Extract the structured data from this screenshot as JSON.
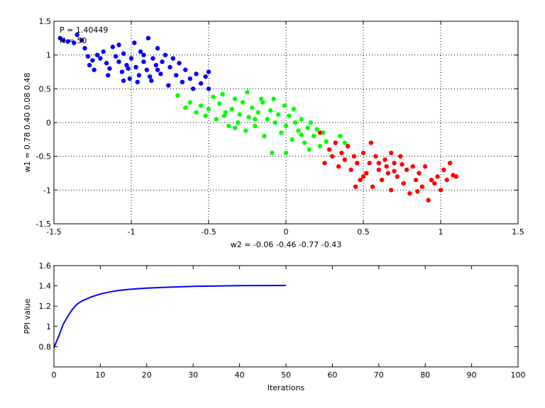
{
  "chart_data": [
    {
      "type": "scatter",
      "annotations": [
        "P = 1.40449",
        "N = 50"
      ],
      "xlabel": "w2 = -0.06  -0.46  -0.77  -0.43",
      "ylabel": "w1 = 0.78  0.40  0.08  0.48",
      "xlim": [
        -1.5,
        1.5
      ],
      "ylim": [
        -1.5,
        1.5
      ],
      "xticks": [
        -1.5,
        -1,
        -0.5,
        0,
        0.5,
        1,
        1.5
      ],
      "yticks": [
        -1.5,
        -1,
        -0.5,
        0,
        0.5,
        1,
        1.5
      ],
      "xtick_labels": [
        "-1.5",
        "-1",
        "-0.5",
        "0",
        "0.5",
        "1",
        "1.5"
      ],
      "ytick_labels": [
        "-1.5",
        "-1",
        "-0.5",
        "0",
        "0.5",
        "1",
        "1.5"
      ],
      "grid": true,
      "series": [
        {
          "color": "#0000ff",
          "points": [
            [
              -1.46,
              1.25
            ],
            [
              -1.44,
              1.22
            ],
            [
              -1.41,
              1.2
            ],
            [
              -1.37,
              1.18
            ],
            [
              -1.35,
              1.3
            ],
            [
              -1.32,
              1.22
            ],
            [
              -1.3,
              1.1
            ],
            [
              -1.28,
              0.98
            ],
            [
              -1.27,
              0.85
            ],
            [
              -1.25,
              0.92
            ],
            [
              -1.24,
              0.78
            ],
            [
              -1.22,
              1.0
            ],
            [
              -1.2,
              0.95
            ],
            [
              -1.18,
              1.05
            ],
            [
              -1.16,
              0.88
            ],
            [
              -1.14,
              0.8
            ],
            [
              -1.12,
              1.12
            ],
            [
              -1.1,
              0.98
            ],
            [
              -1.08,
              0.9
            ],
            [
              -1.06,
              0.75
            ],
            [
              -1.05,
              1.02
            ],
            [
              -1.03,
              0.85
            ],
            [
              -1.01,
              0.65
            ],
            [
              -1.0,
              0.95
            ],
            [
              -0.98,
              1.18
            ],
            [
              -0.97,
              0.82
            ],
            [
              -0.95,
              0.7
            ],
            [
              -0.94,
              1.05
            ],
            [
              -0.92,
              0.9
            ],
            [
              -0.9,
              0.78
            ],
            [
              -0.89,
              1.25
            ],
            [
              -0.87,
              0.62
            ],
            [
              -0.86,
              0.95
            ],
            [
              -0.84,
              0.85
            ],
            [
              -0.83,
              1.1
            ],
            [
              -0.81,
              0.72
            ],
            [
              -0.8,
              0.9
            ],
            [
              -0.78,
              1.0
            ],
            [
              -0.76,
              0.55
            ],
            [
              -0.75,
              0.82
            ],
            [
              -0.73,
              0.95
            ],
            [
              -0.71,
              0.7
            ],
            [
              -0.69,
              0.88
            ],
            [
              -0.67,
              0.6
            ],
            [
              -0.65,
              0.78
            ],
            [
              -0.62,
              0.65
            ],
            [
              -0.6,
              0.5
            ],
            [
              -0.58,
              0.72
            ],
            [
              -0.55,
              0.58
            ],
            [
              -0.52,
              0.68
            ],
            [
              -0.5,
              0.5
            ],
            [
              -0.5,
              0.75
            ],
            [
              -1.05,
              0.62
            ],
            [
              -1.15,
              0.7
            ],
            [
              -0.92,
              1.0
            ],
            [
              -0.88,
              0.68
            ],
            [
              -1.02,
              0.8
            ],
            [
              -0.96,
              0.6
            ],
            [
              -0.83,
              0.78
            ],
            [
              -1.08,
              1.15
            ]
          ]
        },
        {
          "color": "#00ff00",
          "points": [
            [
              -0.7,
              0.4
            ],
            [
              -0.65,
              0.22
            ],
            [
              -0.62,
              0.3
            ],
            [
              -0.58,
              0.15
            ],
            [
              -0.55,
              0.25
            ],
            [
              -0.52,
              0.1
            ],
            [
              -0.5,
              0.2
            ],
            [
              -0.47,
              0.38
            ],
            [
              -0.45,
              0.05
            ],
            [
              -0.43,
              0.28
            ],
            [
              -0.41,
              0.42
            ],
            [
              -0.39,
              0.15
            ],
            [
              -0.37,
              -0.05
            ],
            [
              -0.35,
              0.2
            ],
            [
              -0.33,
              0.35
            ],
            [
              -0.31,
              0.0
            ],
            [
              -0.3,
              0.12
            ],
            [
              -0.28,
              0.3
            ],
            [
              -0.26,
              -0.12
            ],
            [
              -0.24,
              0.08
            ],
            [
              -0.22,
              0.22
            ],
            [
              -0.2,
              -0.05
            ],
            [
              -0.18,
              0.15
            ],
            [
              -0.16,
              0.35
            ],
            [
              -0.14,
              -0.2
            ],
            [
              -0.12,
              0.05
            ],
            [
              -0.1,
              0.18
            ],
            [
              -0.09,
              -0.45
            ],
            [
              -0.07,
              0.0
            ],
            [
              -0.05,
              0.12
            ],
            [
              -0.03,
              -0.15
            ],
            [
              -0.01,
              0.25
            ],
            [
              0.0,
              -0.05
            ],
            [
              0.02,
              0.1
            ],
            [
              0.04,
              -0.25
            ],
            [
              0.06,
              0.0
            ],
            [
              0.08,
              -0.12
            ],
            [
              0.1,
              0.05
            ],
            [
              0.12,
              -0.3
            ],
            [
              0.14,
              -0.08
            ],
            [
              0.16,
              0.0
            ],
            [
              0.18,
              -0.2
            ],
            [
              0.2,
              -0.1
            ],
            [
              0.22,
              -0.35
            ],
            [
              0.24,
              -0.15
            ],
            [
              0.26,
              -0.28
            ],
            [
              0.38,
              -0.3
            ],
            [
              0.35,
              -0.2
            ],
            [
              0.0,
              -0.45
            ],
            [
              -0.25,
              0.45
            ],
            [
              -0.15,
              0.3
            ],
            [
              -0.08,
              0.35
            ],
            [
              0.05,
              0.2
            ],
            [
              -0.4,
              0.1
            ],
            [
              -0.33,
              -0.08
            ],
            [
              0.1,
              -0.18
            ],
            [
              0.15,
              -0.4
            ],
            [
              -0.2,
              0.05
            ]
          ]
        },
        {
          "color": "#ff0000",
          "points": [
            [
              0.22,
              -0.15
            ],
            [
              0.25,
              -0.6
            ],
            [
              0.28,
              -0.4
            ],
            [
              0.3,
              -0.5
            ],
            [
              0.32,
              -0.3
            ],
            [
              0.34,
              -0.65
            ],
            [
              0.36,
              -0.45
            ],
            [
              0.38,
              -0.55
            ],
            [
              0.4,
              -0.35
            ],
            [
              0.42,
              -0.7
            ],
            [
              0.44,
              -0.5
            ],
            [
              0.46,
              -0.6
            ],
            [
              0.48,
              -0.85
            ],
            [
              0.5,
              -0.45
            ],
            [
              0.52,
              -0.75
            ],
            [
              0.54,
              -0.6
            ],
            [
              0.56,
              -0.95
            ],
            [
              0.58,
              -0.5
            ],
            [
              0.6,
              -0.7
            ],
            [
              0.62,
              -0.85
            ],
            [
              0.64,
              -0.55
            ],
            [
              0.66,
              -0.75
            ],
            [
              0.68,
              -1.0
            ],
            [
              0.7,
              -0.6
            ],
            [
              0.72,
              -0.8
            ],
            [
              0.74,
              -0.5
            ],
            [
              0.76,
              -0.9
            ],
            [
              0.78,
              -0.7
            ],
            [
              0.8,
              -1.05
            ],
            [
              0.82,
              -0.65
            ],
            [
              0.84,
              -0.85
            ],
            [
              0.86,
              -0.75
            ],
            [
              0.88,
              -0.95
            ],
            [
              0.9,
              -0.65
            ],
            [
              0.92,
              -1.15
            ],
            [
              0.94,
              -0.85
            ],
            [
              0.96,
              -0.9
            ],
            [
              0.98,
              -0.8
            ],
            [
              1.0,
              -1.0
            ],
            [
              1.02,
              -0.7
            ],
            [
              1.04,
              -0.85
            ],
            [
              1.06,
              -0.6
            ],
            [
              1.08,
              -0.78
            ],
            [
              1.1,
              -0.8
            ],
            [
              0.55,
              -0.3
            ],
            [
              0.65,
              -0.65
            ],
            [
              0.7,
              -0.72
            ],
            [
              0.6,
              -0.6
            ],
            [
              0.75,
              -0.62
            ],
            [
              0.5,
              -0.8
            ],
            [
              0.45,
              -0.95
            ],
            [
              0.85,
              -1.02
            ],
            [
              0.68,
              -0.45
            ]
          ]
        }
      ]
    },
    {
      "type": "line",
      "xlabel": "Iterations",
      "ylabel": "PPI value",
      "xlim": [
        0,
        100
      ],
      "ylim": [
        0.6,
        1.6
      ],
      "xticks": [
        0,
        10,
        20,
        30,
        40,
        50,
        60,
        70,
        80,
        90,
        100
      ],
      "yticks": [
        0.8,
        1,
        1.2,
        1.4,
        1.6
      ],
      "xtick_labels": [
        "0",
        "10",
        "20",
        "30",
        "40",
        "50",
        "60",
        "70",
        "80",
        "90",
        "100"
      ],
      "ytick_labels": [
        "0.8",
        "1",
        "1.2",
        "1.4",
        "1.6"
      ],
      "grid": false,
      "series": [
        {
          "color": "#0000ff",
          "x": [
            0,
            1,
            2,
            3,
            4,
            5,
            6,
            7,
            8,
            10,
            12,
            14,
            16,
            18,
            20,
            25,
            30,
            35,
            40,
            45,
            50
          ],
          "values": [
            0.79,
            0.9,
            1.02,
            1.1,
            1.17,
            1.22,
            1.25,
            1.27,
            1.29,
            1.32,
            1.34,
            1.355,
            1.365,
            1.372,
            1.378,
            1.388,
            1.395,
            1.399,
            1.402,
            1.403,
            1.404
          ]
        }
      ]
    }
  ]
}
